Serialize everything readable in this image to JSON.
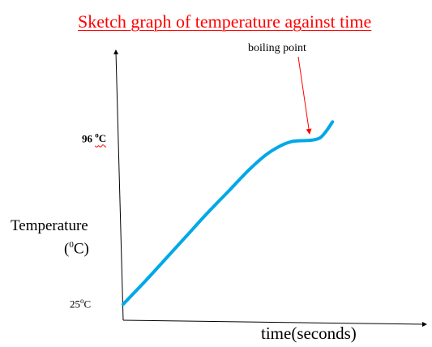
{
  "chart_data": {
    "type": "line",
    "title": "Sketch graph of temperature against time",
    "ylabel": "Temperature",
    "ylabel_unit": {
      "open": "(",
      "sup": "0",
      "close": "C)"
    },
    "xlabel": "time(seconds)",
    "y_ticks": [
      {
        "value": 96,
        "num": "96",
        "sup": "o",
        "unit": "C"
      },
      {
        "value": 25,
        "num": "25",
        "sup": "o",
        "unit": "C"
      }
    ],
    "annotation": {
      "text": "boiling point",
      "x": 0.89,
      "y": 96.5
    },
    "series": [
      {
        "color": "#00a8e8",
        "x": [
          0.0,
          0.1,
          0.2,
          0.3,
          0.4,
          0.5,
          0.6,
          0.68,
          0.75,
          0.8,
          0.85,
          0.9,
          0.94,
          0.97,
          1.0
        ],
        "y": [
          25.0,
          34.5,
          44.5,
          54.5,
          64.5,
          74.0,
          83.5,
          90.0,
          94.0,
          95.8,
          96.3,
          96.5,
          97.5,
          100.5,
          104.5
        ]
      }
    ],
    "xlim": [
      0,
      1.44
    ],
    "ylim": [
      18,
      135
    ],
    "grid": false,
    "legend": "none",
    "axis_color": "#000000",
    "annotation_arrow_color": "#ff0000"
  }
}
